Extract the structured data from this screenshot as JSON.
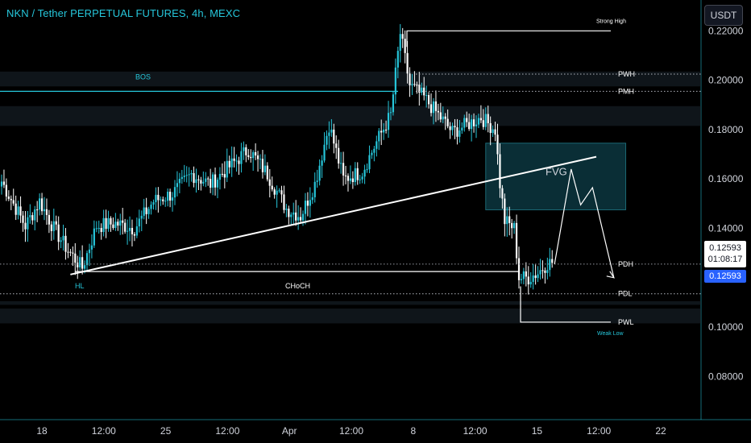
{
  "header": {
    "title": "NKN / Tether PERPETUAL FUTURES, 4h, MEXC",
    "currency_label": "USDT"
  },
  "price_readout": {
    "price": "0.12593",
    "countdown": "01:08:17",
    "last_price": "0.12593"
  },
  "colors": {
    "background": "#000000",
    "up_candle": "#26c6da",
    "down_candle": "#ffffff",
    "text": "#d1d4dc",
    "accent": "#26c6da",
    "last_price": "#2962ff"
  },
  "chart_data": {
    "type": "candlestick",
    "title": "",
    "xlabel": "",
    "ylabel": "",
    "ylim": [
      0.0625,
      0.2325
    ],
    "y_ticks": [
      "0.08000",
      "0.10000",
      "0.12000",
      "0.14000",
      "0.16000",
      "0.18000",
      "0.20000",
      "0.22000"
    ],
    "x_tick_labels": [
      "18",
      "12:00",
      "25",
      "12:00",
      "Apr",
      "12:00",
      "8",
      "12:00",
      "15",
      "12:00",
      "22"
    ],
    "anchors": [
      {
        "i": 0,
        "p": 0.159
      },
      {
        "i": 5,
        "p": 0.15
      },
      {
        "i": 10,
        "p": 0.141
      },
      {
        "i": 16,
        "p": 0.151
      },
      {
        "i": 22,
        "p": 0.14
      },
      {
        "i": 28,
        "p": 0.131
      },
      {
        "i": 34,
        "p": 0.124
      },
      {
        "i": 40,
        "p": 0.141
      },
      {
        "i": 48,
        "p": 0.142
      },
      {
        "i": 56,
        "p": 0.14
      },
      {
        "i": 64,
        "p": 0.151
      },
      {
        "i": 72,
        "p": 0.154
      },
      {
        "i": 80,
        "p": 0.162
      },
      {
        "i": 88,
        "p": 0.158
      },
      {
        "i": 96,
        "p": 0.165
      },
      {
        "i": 104,
        "p": 0.172
      },
      {
        "i": 112,
        "p": 0.162
      },
      {
        "i": 120,
        "p": 0.148
      },
      {
        "i": 126,
        "p": 0.145
      },
      {
        "i": 132,
        "p": 0.158
      },
      {
        "i": 138,
        "p": 0.182
      },
      {
        "i": 144,
        "p": 0.16
      },
      {
        "i": 152,
        "p": 0.163
      },
      {
        "i": 158,
        "p": 0.175
      },
      {
        "i": 164,
        "p": 0.186
      },
      {
        "i": 168,
        "p": 0.219
      },
      {
        "i": 172,
        "p": 0.198
      },
      {
        "i": 178,
        "p": 0.193
      },
      {
        "i": 184,
        "p": 0.186
      },
      {
        "i": 190,
        "p": 0.179
      },
      {
        "i": 196,
        "p": 0.182
      },
      {
        "i": 202,
        "p": 0.185
      },
      {
        "i": 208,
        "p": 0.18
      },
      {
        "i": 210,
        "p": 0.158
      },
      {
        "i": 212,
        "p": 0.143
      },
      {
        "i": 216,
        "p": 0.14
      },
      {
        "i": 218,
        "p": 0.12
      },
      {
        "i": 222,
        "p": 0.12
      },
      {
        "i": 226,
        "p": 0.122
      },
      {
        "i": 230,
        "p": 0.126
      },
      {
        "i": 232,
        "p": 0.126
      }
    ],
    "annotations": {
      "labels": [
        "BOS",
        "HL",
        "CHoCH",
        "Strong High",
        "Weak Low",
        "FVG"
      ],
      "levels": [
        {
          "label": "PWH",
          "price": 0.2025
        },
        {
          "label": "PMH",
          "price": 0.1955
        },
        {
          "label": "PDH",
          "price": 0.1255
        },
        {
          "label": "PDL",
          "price": 0.1135
        },
        {
          "label": "PWL",
          "price": 0.102
        }
      ],
      "bos_price": 0.1955,
      "strong_high_price": 0.22,
      "weak_low_price": 0.102,
      "choch_price": 0.1225,
      "fvg_zone": [
        0.1475,
        0.1745
      ],
      "trendline": [
        {
          "i": 30,
          "p": 0.1213
        },
        {
          "i": 250,
          "p": 0.169
        }
      ],
      "projection": [
        {
          "i": 233,
          "p": 0.1255
        },
        {
          "i": 240,
          "p": 0.164
        },
        {
          "i": 244,
          "p": 0.1495
        },
        {
          "i": 249,
          "p": 0.1565
        },
        {
          "i": 258,
          "p": 0.12
        }
      ]
    }
  }
}
